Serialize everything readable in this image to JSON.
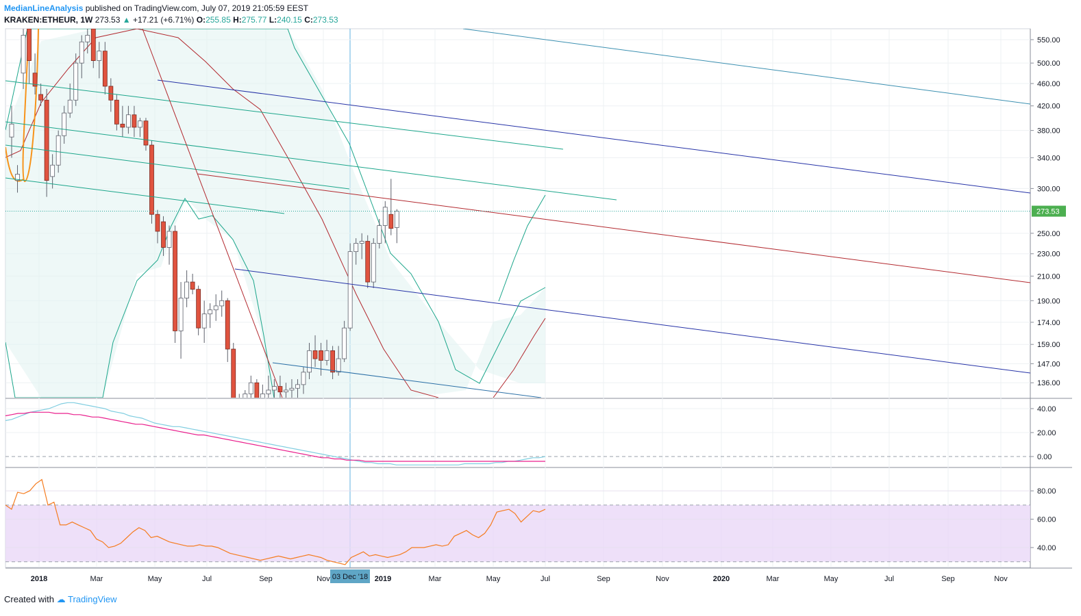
{
  "header": {
    "author": "MedianLineAnalysis",
    "published": " published on TradingView.com, July 07, 2019 21:05:59 EEST",
    "symbol": "KRAKEN:ETHEUR, 1W",
    "last": "273.53",
    "change": "+17.21 (+6.71%)",
    "o_label": "O:",
    "o": "255.85",
    "h_label": "H:",
    "h": "275.77",
    "l_label": "L:",
    "l": "240.15",
    "c_label": "C:",
    "c": "273.53"
  },
  "footer": {
    "created": "Created with",
    "brand": "TradingView"
  },
  "colors": {
    "up": "#26a69a",
    "down": "#ef5350",
    "candle_up_fill": "#ffffff",
    "candle_down_fill": "#e0533f",
    "navy": "#2431a6",
    "teal": "#1aa58a",
    "red": "#b2282e",
    "cyan": "#4fa9c6",
    "orange": "#f7931a",
    "pink": "#e91e8c",
    "rsi_line": "#f57c1f",
    "rsi_band": "#ead8f7",
    "badge": "#4caf50"
  },
  "chart_data": [
    {
      "type": "candlestick",
      "title": "",
      "y_ticks": [
        "550.00",
        "500.00",
        "460.00",
        "420.00",
        "380.00",
        "340.00",
        "300.00",
        "250.00",
        "230.00",
        "210.00",
        "190.00",
        "174.00",
        "159.00",
        "147.00",
        "136.00"
      ],
      "y_scale": "log",
      "ylim": [
        128,
        575
      ],
      "last_price": "273.53",
      "x_ticks": [
        "2018",
        "Mar",
        "May",
        "Jul",
        "Sep",
        "Nov",
        "03 Dec '18",
        "2019",
        "Mar",
        "May",
        "Jul",
        "Sep",
        "Nov",
        "2020",
        "Mar",
        "May",
        "Jul",
        "Sep",
        "Nov"
      ],
      "candles": [
        {
          "o": 370,
          "h": 420,
          "l": 340,
          "c": 390
        },
        {
          "o": 310,
          "h": 330,
          "l": 295,
          "c": 318
        },
        {
          "o": 480,
          "h": 575,
          "l": 450,
          "c": 560
        },
        {
          "o": 575,
          "h": 575,
          "l": 460,
          "c": 505
        },
        {
          "o": 480,
          "h": 520,
          "l": 440,
          "c": 455
        },
        {
          "o": 440,
          "h": 460,
          "l": 420,
          "c": 430
        },
        {
          "o": 430,
          "h": 450,
          "l": 290,
          "c": 310
        },
        {
          "o": 315,
          "h": 345,
          "l": 300,
          "c": 330
        },
        {
          "o": 330,
          "h": 380,
          "l": 320,
          "c": 372
        },
        {
          "o": 372,
          "h": 420,
          "l": 360,
          "c": 408
        },
        {
          "o": 408,
          "h": 460,
          "l": 400,
          "c": 430
        },
        {
          "o": 430,
          "h": 520,
          "l": 420,
          "c": 500
        },
        {
          "o": 500,
          "h": 560,
          "l": 470,
          "c": 545
        },
        {
          "o": 545,
          "h": 575,
          "l": 520,
          "c": 560
        },
        {
          "o": 575,
          "h": 575,
          "l": 490,
          "c": 505
        },
        {
          "o": 505,
          "h": 545,
          "l": 470,
          "c": 525
        },
        {
          "o": 525,
          "h": 545,
          "l": 440,
          "c": 455
        },
        {
          "o": 455,
          "h": 470,
          "l": 410,
          "c": 430
        },
        {
          "o": 430,
          "h": 440,
          "l": 380,
          "c": 390
        },
        {
          "o": 390,
          "h": 420,
          "l": 370,
          "c": 385
        },
        {
          "o": 385,
          "h": 420,
          "l": 375,
          "c": 405
        },
        {
          "o": 405,
          "h": 420,
          "l": 370,
          "c": 385
        },
        {
          "o": 385,
          "h": 400,
          "l": 370,
          "c": 395
        },
        {
          "o": 395,
          "h": 400,
          "l": 350,
          "c": 358
        },
        {
          "o": 358,
          "h": 365,
          "l": 260,
          "c": 270
        },
        {
          "o": 270,
          "h": 275,
          "l": 240,
          "c": 252
        },
        {
          "o": 262,
          "h": 268,
          "l": 228,
          "c": 236
        },
        {
          "o": 236,
          "h": 258,
          "l": 220,
          "c": 252
        },
        {
          "o": 252,
          "h": 258,
          "l": 160,
          "c": 168
        },
        {
          "o": 168,
          "h": 205,
          "l": 150,
          "c": 192
        },
        {
          "o": 192,
          "h": 215,
          "l": 185,
          "c": 205
        },
        {
          "o": 205,
          "h": 212,
          "l": 195,
          "c": 199
        },
        {
          "o": 199,
          "h": 202,
          "l": 165,
          "c": 170
        },
        {
          "o": 170,
          "h": 190,
          "l": 160,
          "c": 180
        },
        {
          "o": 180,
          "h": 188,
          "l": 170,
          "c": 183
        },
        {
          "o": 183,
          "h": 195,
          "l": 175,
          "c": 186
        },
        {
          "o": 186,
          "h": 198,
          "l": 178,
          "c": 190
        },
        {
          "o": 190,
          "h": 192,
          "l": 148,
          "c": 156
        },
        {
          "o": 156,
          "h": 160,
          "l": 115,
          "c": 120
        },
        {
          "o": 120,
          "h": 130,
          "l": 110,
          "c": 126
        },
        {
          "o": 126,
          "h": 132,
          "l": 118,
          "c": 130
        },
        {
          "o": 130,
          "h": 140,
          "l": 120,
          "c": 136
        },
        {
          "o": 136,
          "h": 138,
          "l": 122,
          "c": 125
        },
        {
          "o": 125,
          "h": 135,
          "l": 118,
          "c": 130
        },
        {
          "o": 130,
          "h": 140,
          "l": 124,
          "c": 132
        },
        {
          "o": 132,
          "h": 138,
          "l": 125,
          "c": 134
        },
        {
          "o": 134,
          "h": 140,
          "l": 126,
          "c": 131
        },
        {
          "o": 131,
          "h": 136,
          "l": 124,
          "c": 132
        },
        {
          "o": 132,
          "h": 138,
          "l": 126,
          "c": 133
        },
        {
          "o": 133,
          "h": 138,
          "l": 128,
          "c": 135
        },
        {
          "o": 135,
          "h": 145,
          "l": 130,
          "c": 142
        },
        {
          "o": 142,
          "h": 160,
          "l": 138,
          "c": 155
        },
        {
          "o": 155,
          "h": 165,
          "l": 145,
          "c": 150
        },
        {
          "o": 155,
          "h": 160,
          "l": 140,
          "c": 149
        },
        {
          "o": 149,
          "h": 162,
          "l": 146,
          "c": 155
        },
        {
          "o": 155,
          "h": 158,
          "l": 138,
          "c": 142
        },
        {
          "o": 142,
          "h": 158,
          "l": 140,
          "c": 150
        },
        {
          "o": 150,
          "h": 175,
          "l": 148,
          "c": 170
        },
        {
          "o": 170,
          "h": 240,
          "l": 168,
          "c": 232
        },
        {
          "o": 232,
          "h": 245,
          "l": 220,
          "c": 240
        },
        {
          "o": 240,
          "h": 250,
          "l": 225,
          "c": 242
        },
        {
          "o": 242,
          "h": 248,
          "l": 200,
          "c": 205
        },
        {
          "o": 205,
          "h": 245,
          "l": 200,
          "c": 240
        },
        {
          "o": 240,
          "h": 265,
          "l": 235,
          "c": 258
        },
        {
          "o": 258,
          "h": 285,
          "l": 240,
          "c": 278
        },
        {
          "o": 270,
          "h": 312,
          "l": 248,
          "c": 255
        },
        {
          "o": 255.85,
          "h": 275.77,
          "l": 240.15,
          "c": 273.53
        }
      ]
    },
    {
      "type": "line",
      "y_ticks": [
        "40.00",
        "20.00",
        "0.00"
      ],
      "ylim": [
        -8,
        48
      ],
      "series": [
        {
          "values": [
            30,
            31,
            33,
            35,
            37,
            38,
            39,
            40,
            42,
            44,
            45,
            45,
            44,
            43,
            42,
            41,
            40,
            38,
            37,
            36,
            34,
            33,
            32,
            30,
            28,
            27,
            26,
            25,
            25,
            24,
            23,
            22,
            21,
            20,
            19,
            18,
            17,
            16,
            15,
            14,
            13,
            12,
            11,
            10,
            9,
            8,
            7,
            6,
            5,
            4,
            3,
            2,
            1,
            0,
            -1,
            -2,
            -3,
            -4,
            -5,
            -5,
            -6,
            -6,
            -6,
            -7,
            -7,
            -7,
            -7,
            -7,
            -7,
            -7,
            -7,
            -7,
            -7,
            -7,
            -6,
            -6,
            -6,
            -6,
            -6,
            -5,
            -5,
            -4,
            -4,
            -3,
            -2,
            -1,
            -1,
            0
          ]
        },
        {
          "values": [
            34,
            35,
            36,
            36,
            37,
            37,
            37,
            37,
            36,
            36,
            36,
            35,
            35,
            34,
            33,
            33,
            32,
            31,
            30,
            29,
            28,
            27,
            27,
            26,
            25,
            24,
            23,
            22,
            21,
            20,
            19,
            18,
            18,
            17,
            16,
            15,
            14,
            13,
            12,
            11,
            10,
            9,
            8,
            7,
            6,
            5,
            4,
            3,
            2,
            1,
            0,
            -1,
            -1,
            -2,
            -2,
            -3,
            -3,
            -3,
            -4,
            -4,
            -4,
            -4,
            -4,
            -4,
            -4,
            -4,
            -4,
            -4,
            -4,
            -4,
            -4,
            -4,
            -4,
            -4,
            -4,
            -4,
            -4,
            -4,
            -4,
            -4,
            -4,
            -4,
            -4,
            -4,
            -4,
            -4,
            -4,
            -4
          ]
        }
      ]
    },
    {
      "type": "line",
      "y_ticks": [
        "80.00",
        "60.00",
        "40.00"
      ],
      "ylim": [
        26,
        96
      ],
      "band": [
        30,
        70
      ],
      "series": [
        {
          "values": [
            70,
            67,
            79,
            78,
            80,
            85,
            88,
            70,
            72,
            56,
            56,
            58,
            56,
            54,
            52,
            46,
            44,
            40,
            41,
            43,
            47,
            51,
            54,
            52,
            47,
            48,
            46,
            44,
            43,
            42,
            41,
            41,
            42,
            41,
            41,
            40,
            38,
            36,
            35,
            34,
            33,
            32,
            31,
            32,
            33,
            34,
            33,
            32,
            33,
            34,
            35,
            34,
            33,
            31,
            30,
            29,
            28,
            33,
            35,
            37,
            34,
            35,
            34,
            33,
            34,
            35,
            37,
            40,
            40,
            40,
            41,
            42,
            41,
            42,
            48,
            50,
            52,
            49,
            47,
            50,
            56,
            65,
            66,
            67,
            64,
            58,
            62,
            66,
            65,
            67
          ]
        }
      ]
    }
  ]
}
